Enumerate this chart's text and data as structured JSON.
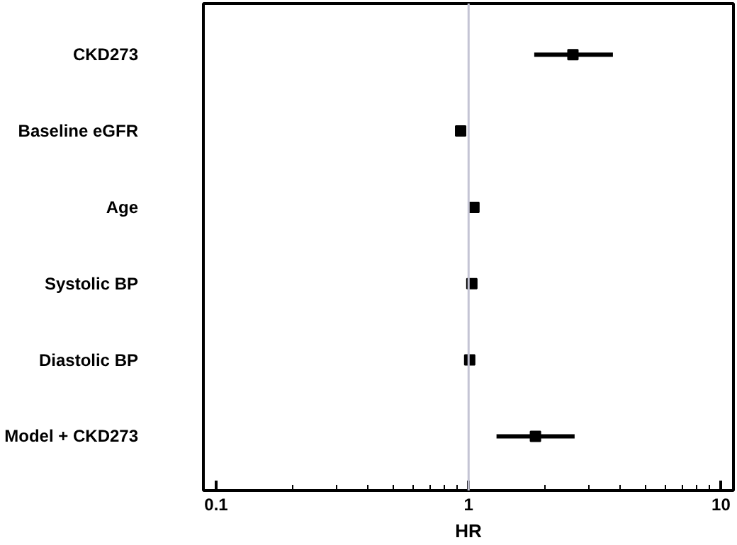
{
  "chart_data": {
    "type": "scatter",
    "orientation": "horizontal",
    "log": "x",
    "marker": "square",
    "grid": false,
    "categories": [
      "CKD273",
      "Baseline eGFR",
      "Age",
      "Systolic BP",
      "Diastolic BP",
      "Model + CKD273"
    ],
    "series": [
      {
        "color": "#000000",
        "values": [
          2.59,
          0.93,
          1.05,
          1.03,
          1.01,
          1.84
        ],
        "errors": [
          [
            1.82,
            3.73
          ],
          null,
          null,
          null,
          null,
          [
            1.29,
            2.63
          ]
        ]
      }
    ],
    "xlabel": "HR",
    "xlim": [
      0.089,
      11.2
    ],
    "xticks": [
      0.1,
      {
        "value": 0.2,
        "label": null
      },
      {
        "value": 0.3,
        "label": null
      },
      {
        "value": 0.4,
        "label": null
      },
      {
        "value": 0.5,
        "label": null
      },
      {
        "value": 0.6,
        "label": null
      },
      {
        "value": 0.7,
        "label": null
      },
      {
        "value": 0.8,
        "label": null
      },
      {
        "value": 0.9,
        "label": null
      },
      1,
      {
        "value": 2,
        "label": null
      },
      {
        "value": 3,
        "label": null
      },
      {
        "value": 4,
        "label": null
      },
      {
        "value": 5,
        "label": null
      },
      {
        "value": 6,
        "label": null
      },
      {
        "value": 7,
        "label": null
      },
      {
        "value": 8,
        "label": null
      },
      {
        "value": 9,
        "label": null
      },
      10
    ],
    "ref_lines": [
      {
        "axis": "x",
        "value": 1,
        "color": "#c4c4d4"
      }
    ]
  }
}
